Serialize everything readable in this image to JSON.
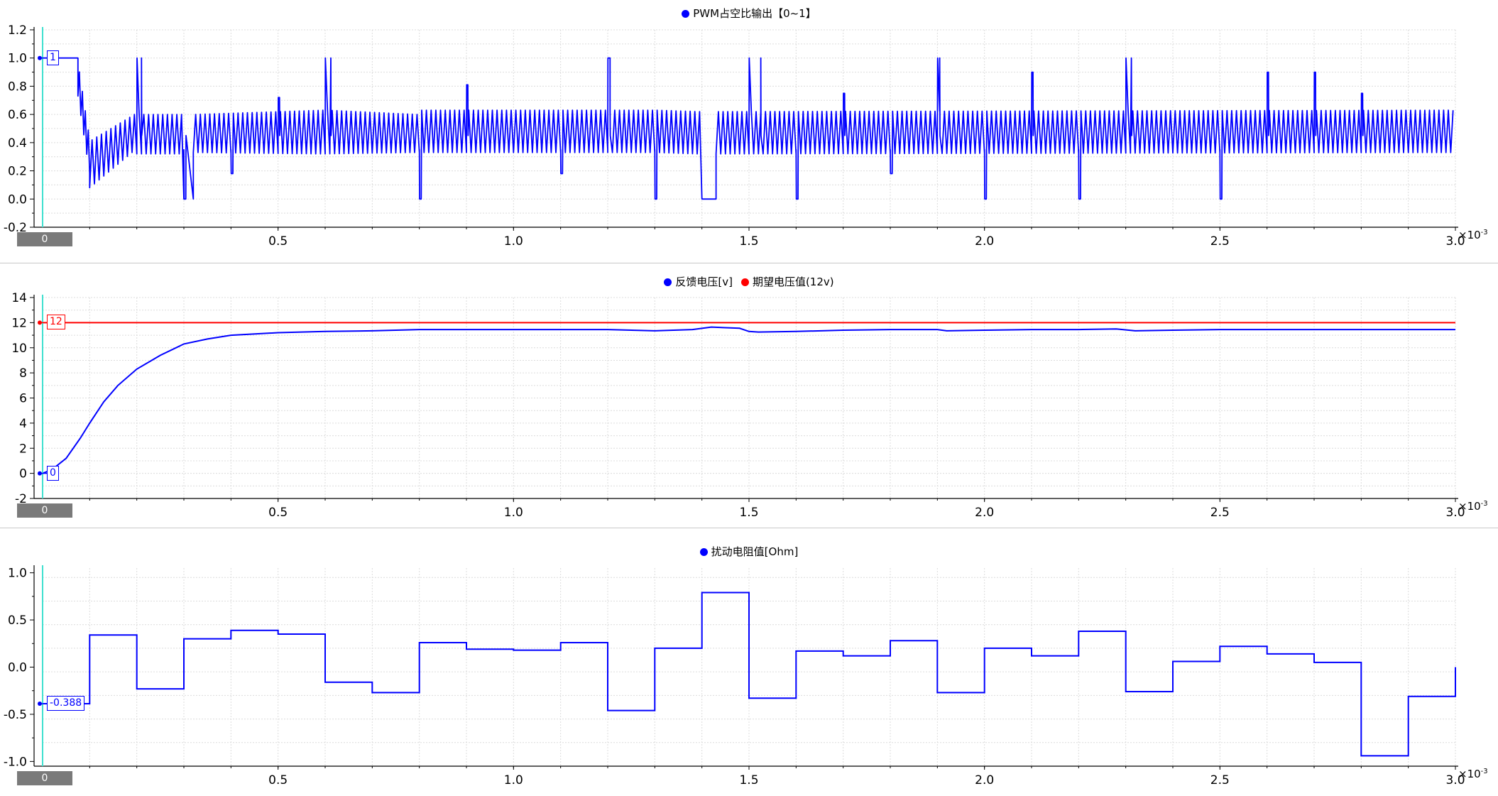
{
  "chart_data": [
    {
      "type": "line",
      "legend": [
        {
          "name": "PWM占空比输出【0~1】",
          "color": "#0000ff"
        }
      ],
      "xlim": [
        0,
        3.0
      ],
      "x_ticks": [
        "0.5",
        "1.0",
        "1.5",
        "2.0",
        "2.5",
        "3.0"
      ],
      "x_multiplier": "×10",
      "x_multiplier_exp": "-3",
      "ylim": [
        -0.2,
        1.2
      ],
      "y_ticks": [
        "-0.2",
        "0.0",
        "0.2",
        "0.4",
        "0.6",
        "0.8",
        "1.0",
        "1.2"
      ],
      "grid": true,
      "cursor_x_label": "0",
      "cursor_values": [
        {
          "text": "1",
          "color": "#0000ff",
          "y": 1.0
        }
      ],
      "series": [
        {
          "name": "PWM占空比输出【0~1】",
          "color": "#0000ff",
          "kind": "oscillating",
          "segments": [
            {
              "x0": 0.0,
              "x1": 0.075,
              "mode": "flat",
              "value": 1.0
            },
            {
              "x0": 0.075,
              "x1": 0.1,
              "mode": "ramp",
              "from": 0.85,
              "to": 0.3
            },
            {
              "x0": 0.1,
              "x1": 0.2,
              "mode": "osc",
              "lo": [
                0.08,
                0.33
              ],
              "hi": [
                0.42,
                0.6
              ]
            },
            {
              "x0": 0.2,
              "x1": 0.3,
              "mode": "osc",
              "lo": [
                0.32,
                0.32
              ],
              "hi": [
                0.6,
                0.6
              ]
            },
            {
              "x0": 0.3,
              "x1": 0.32,
              "mode": "flat",
              "value": 0.0
            },
            {
              "x0": 0.32,
              "x1": 0.6,
              "mode": "osc",
              "lo": [
                0.33,
                0.32
              ],
              "hi": [
                0.6,
                0.63
              ]
            },
            {
              "x0": 0.6,
              "x1": 0.8,
              "mode": "osc",
              "lo": [
                0.32,
                0.33
              ],
              "hi": [
                0.63,
                0.6
              ]
            },
            {
              "x0": 0.8,
              "x1": 1.3,
              "mode": "osc",
              "lo": [
                0.33,
                0.33
              ],
              "hi": [
                0.63,
                0.63
              ]
            },
            {
              "x0": 1.3,
              "x1": 1.4,
              "mode": "osc",
              "lo": [
                0.33,
                0.32
              ],
              "hi": [
                0.63,
                0.62
              ]
            },
            {
              "x0": 1.4,
              "x1": 1.43,
              "mode": "flat",
              "value": 0.0
            },
            {
              "x0": 1.43,
              "x1": 3.0,
              "mode": "osc",
              "lo": [
                0.32,
                0.33
              ],
              "hi": [
                0.62,
                0.63
              ]
            }
          ],
          "spikes": [
            {
              "x": 0.2,
              "value": 1.0,
              "width": 0.01
            },
            {
              "x": 0.6,
              "value": 1.0,
              "width": 0.012
            },
            {
              "x": 1.2,
              "value": 1.0,
              "width": 0.005
            },
            {
              "x": 1.5,
              "value": 1.0,
              "width": 0.025
            },
            {
              "x": 1.9,
              "value": 1.0,
              "width": 0.005
            },
            {
              "x": 2.3,
              "value": 1.0,
              "width": 0.012
            },
            {
              "x": 0.5,
              "value": 0.72,
              "width": 0.003
            },
            {
              "x": 0.9,
              "value": 0.81,
              "width": 0.003
            },
            {
              "x": 1.7,
              "value": 0.75,
              "width": 0.003
            },
            {
              "x": 2.1,
              "value": 0.9,
              "width": 0.003
            },
            {
              "x": 2.6,
              "value": 0.9,
              "width": 0.003
            },
            {
              "x": 2.7,
              "value": 0.9,
              "width": 0.003
            },
            {
              "x": 2.8,
              "value": 0.75,
              "width": 0.003
            }
          ],
          "dips": [
            {
              "x": 0.3,
              "value": 0.0
            },
            {
              "x": 0.4,
              "value": 0.18
            },
            {
              "x": 0.8,
              "value": 0.0
            },
            {
              "x": 1.1,
              "value": 0.18
            },
            {
              "x": 1.3,
              "value": 0.0
            },
            {
              "x": 1.6,
              "value": 0.0
            },
            {
              "x": 1.8,
              "value": 0.18
            },
            {
              "x": 2.0,
              "value": 0.0
            },
            {
              "x": 2.2,
              "value": 0.0
            },
            {
              "x": 2.5,
              "value": 0.0
            }
          ]
        }
      ]
    },
    {
      "type": "line",
      "legend": [
        {
          "name": "反馈电压[v]",
          "color": "#0000ff"
        },
        {
          "name": "期望电压值(12v)",
          "color": "#ff0000"
        }
      ],
      "xlim": [
        0,
        3.0
      ],
      "x_ticks": [
        "0.5",
        "1.0",
        "1.5",
        "2.0",
        "2.5",
        "3.0"
      ],
      "x_multiplier": "×10",
      "x_multiplier_exp": "-3",
      "ylim": [
        -2,
        14
      ],
      "y_ticks": [
        "-2",
        "0",
        "2",
        "4",
        "6",
        "8",
        "10",
        "12",
        "14"
      ],
      "grid": true,
      "cursor_x_label": "0",
      "cursor_values": [
        {
          "text": "12",
          "color": "#ff0000",
          "y": 12
        },
        {
          "text": "0",
          "color": "#0000ff",
          "y": 0
        }
      ],
      "series": [
        {
          "name": "期望电压值(12v)",
          "color": "#ff0000",
          "x": [
            0,
            3.0
          ],
          "y": [
            12,
            12
          ]
        },
        {
          "name": "反馈电压[v]",
          "color": "#0000ff",
          "x": [
            0,
            0.02,
            0.05,
            0.08,
            0.1,
            0.13,
            0.16,
            0.2,
            0.25,
            0.3,
            0.35,
            0.4,
            0.5,
            0.6,
            0.7,
            0.8,
            0.9,
            1.0,
            1.1,
            1.2,
            1.3,
            1.38,
            1.42,
            1.48,
            1.5,
            1.52,
            1.6,
            1.7,
            1.8,
            1.9,
            1.92,
            2.0,
            2.1,
            2.2,
            2.28,
            2.32,
            2.4,
            2.5,
            2.6,
            2.7,
            2.8,
            2.9,
            3.0
          ],
          "y": [
            0,
            0.3,
            1.2,
            2.8,
            4.0,
            5.7,
            7.0,
            8.3,
            9.4,
            10.3,
            10.7,
            11.0,
            11.2,
            11.3,
            11.35,
            11.45,
            11.45,
            11.45,
            11.45,
            11.45,
            11.35,
            11.45,
            11.65,
            11.55,
            11.3,
            11.25,
            11.3,
            11.4,
            11.45,
            11.45,
            11.35,
            11.4,
            11.45,
            11.45,
            11.5,
            11.35,
            11.4,
            11.45,
            11.45,
            11.45,
            11.45,
            11.45,
            11.45
          ]
        }
      ]
    },
    {
      "type": "line",
      "legend": [
        {
          "name": "扰动电阻值[Ohm]",
          "color": "#0000ff"
        }
      ],
      "xlim": [
        0,
        3.0
      ],
      "x_ticks": [
        "0.5",
        "1.0",
        "1.5",
        "2.0",
        "2.5",
        "3.0"
      ],
      "x_multiplier": "×10",
      "x_multiplier_exp": "-3",
      "ylim": [
        -1.05,
        1.05
      ],
      "y_ticks": [
        "-1.0",
        "-0.5",
        "0.0",
        "0.5",
        "1.0"
      ],
      "grid": true,
      "cursor_x_label": "0",
      "cursor_values": [
        {
          "text": "-0.388",
          "color": "#0000ff",
          "y": -0.388
        }
      ],
      "series": [
        {
          "name": "扰动电阻值[Ohm]",
          "color": "#0000ff",
          "step": true,
          "x": [
            0,
            0.1,
            0.2,
            0.3,
            0.4,
            0.5,
            0.6,
            0.7,
            0.8,
            0.9,
            1.0,
            1.1,
            1.2,
            1.3,
            1.4,
            1.5,
            1.6,
            1.7,
            1.8,
            1.9,
            2.0,
            2.1,
            2.2,
            2.3,
            2.4,
            2.5,
            2.6,
            2.7,
            2.8,
            2.9,
            3.0
          ],
          "y": [
            -0.388,
            0.34,
            -0.23,
            0.3,
            0.39,
            0.35,
            -0.16,
            -0.27,
            0.26,
            0.19,
            0.18,
            0.26,
            -0.46,
            0.2,
            0.79,
            -0.33,
            0.17,
            0.12,
            0.28,
            -0.27,
            0.2,
            0.12,
            0.38,
            -0.26,
            0.06,
            0.22,
            0.14,
            0.05,
            -0.94,
            -0.31,
            0.0
          ]
        }
      ]
    }
  ]
}
